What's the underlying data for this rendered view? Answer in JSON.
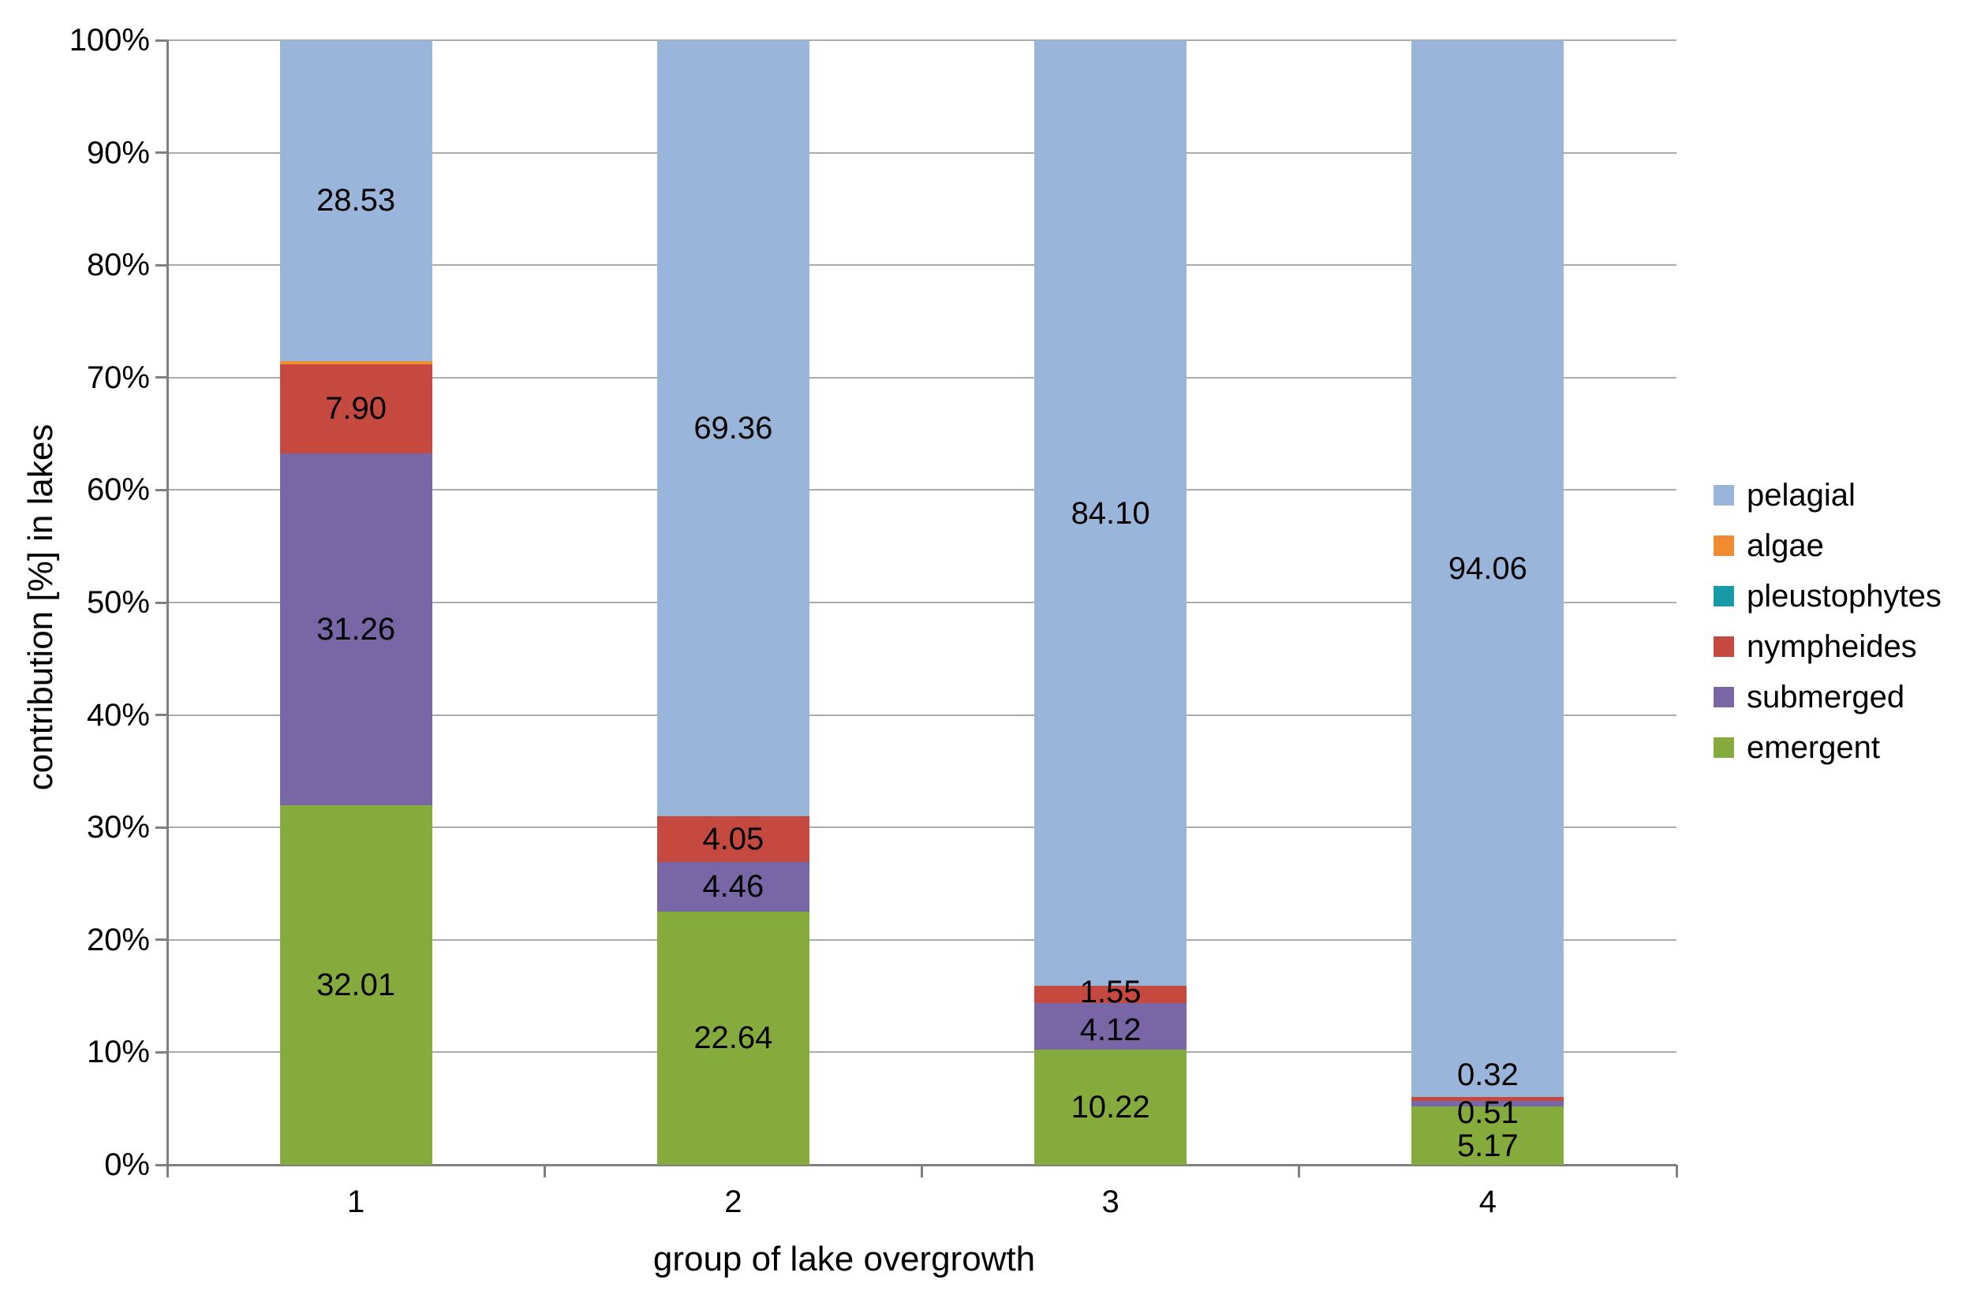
{
  "chart_data": {
    "type": "bar",
    "stacking": "percent",
    "title": "",
    "xlabel": "group of lake overgrowth",
    "ylabel": "contribution [%] in lakes",
    "categories": [
      "1",
      "2",
      "3",
      "4"
    ],
    "ylim": [
      0,
      100
    ],
    "ytick_step": 10,
    "ytick_labels": [
      "0%",
      "10%",
      "20%",
      "30%",
      "40%",
      "50%",
      "60%",
      "70%",
      "80%",
      "90%",
      "100%"
    ],
    "grid": true,
    "legend_position": "right",
    "legend_items_top_to_bottom": [
      "pelagial",
      "algae",
      "pleustophytes",
      "nympheides",
      "submerged",
      "emergent"
    ],
    "series_bottom_to_top": [
      {
        "name": "emergent",
        "color": "#84AB3C",
        "values": [
          32.01,
          22.64,
          10.22,
          5.17
        ],
        "labels": [
          "32.01",
          "22.64",
          "10.22",
          "5.17"
        ]
      },
      {
        "name": "submerged",
        "color": "#7966A6",
        "values": [
          31.26,
          4.46,
          4.12,
          0.51
        ],
        "labels": [
          "31.26",
          "4.46",
          "4.12",
          "0.51"
        ]
      },
      {
        "name": "nympheides",
        "color": "#C6493F",
        "values": [
          7.9,
          4.05,
          1.55,
          0.32
        ],
        "labels": [
          "7.90",
          "4.05",
          "1.55",
          "0.32"
        ]
      },
      {
        "name": "pleustophytes",
        "color": "#1899A8",
        "values": [
          0,
          0,
          0,
          0
        ],
        "labels": [
          "",
          "",
          "",
          ""
        ]
      },
      {
        "name": "algae",
        "color": "#F28A30",
        "values": [
          0.3,
          0,
          0,
          0
        ],
        "labels": [
          "",
          "",
          "",
          ""
        ]
      },
      {
        "name": "pelagial",
        "color": "#9AB5DA",
        "values": [
          28.53,
          69.36,
          84.1,
          94.06
        ],
        "labels": [
          "28.53",
          "69.36",
          "84.10",
          "94.06"
        ]
      }
    ],
    "style": {
      "grid_color": "#ABABAB",
      "axis_color": "#808080",
      "label_color": "#000000",
      "background": "#FFFFFF"
    }
  }
}
